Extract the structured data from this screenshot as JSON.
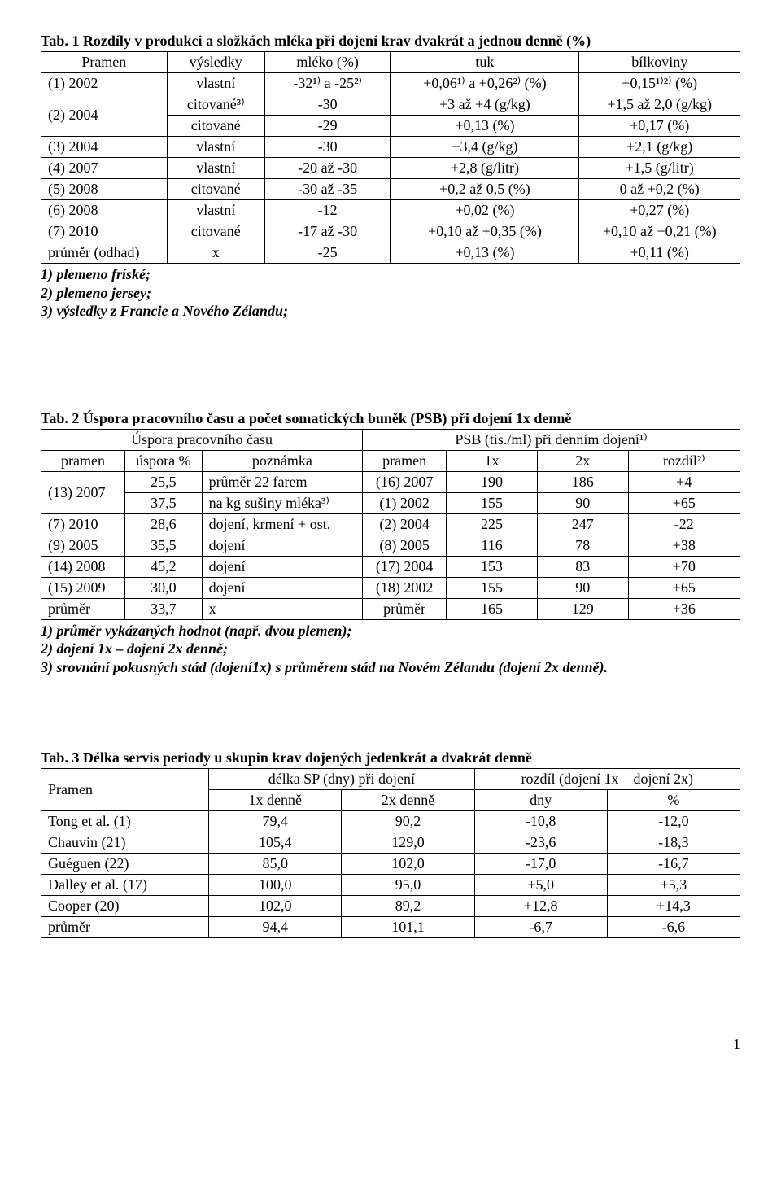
{
  "table1": {
    "title": "Tab. 1 Rozdíly v produkci a složkách mléka při dojení krav dvakrát a jednou denně (%)",
    "headers": [
      "Pramen",
      "výsledky",
      "mléko (%)",
      "tuk",
      "bílkoviny"
    ],
    "rows": [
      [
        "(1) 2002",
        "vlastní",
        "-32¹⁾ a -25²⁾",
        "+0,06¹⁾ a +0,26²⁾ (%)",
        "+0,15¹⁾²⁾ (%)"
      ],
      [
        "(2) 2004",
        "citované³⁾",
        "-30",
        "+3 až +4 (g/kg)",
        "+1,5 až 2,0 (g/kg)"
      ],
      [
        "",
        "citované",
        "-29",
        "+0,13 (%)",
        "+0,17 (%)"
      ],
      [
        "(3) 2004",
        "vlastní",
        "-30",
        "+3,4 (g/kg)",
        "+2,1 (g/kg)"
      ],
      [
        "(4) 2007",
        "vlastní",
        "-20 až -30",
        "+2,8 (g/litr)",
        "+1,5 (g/litr)"
      ],
      [
        "(5) 2008",
        "citované",
        "-30 až -35",
        "+0,2 až 0,5 (%)",
        "0 až +0,2 (%)"
      ],
      [
        "(6) 2008",
        "vlastní",
        "-12",
        "+0,02 (%)",
        "+0,27 (%)"
      ],
      [
        "(7) 2010",
        "citované",
        "-17 až -30",
        "+0,10 až +0,35 (%)",
        "+0,10 až +0,21 (%)"
      ],
      [
        "průměr (odhad)",
        "x",
        "-25",
        "+0,13 (%)",
        "+0,11 (%)"
      ]
    ],
    "col_widths": [
      "18%",
      "14%",
      "18%",
      "27%",
      "23%"
    ],
    "footnotes": [
      "1) plemeno fríské;",
      "2) plemeno jersey;",
      "3) výsledky z Francie a Nového Zélandu;"
    ]
  },
  "table2": {
    "title": "Tab. 2 Úspora pracovního času a počet somatických buněk (PSB) při dojení 1x denně",
    "header_row1_left": "Úspora pracovního času",
    "header_row1_right": "PSB (tis./ml) při denním dojení¹⁾",
    "header_row2": [
      "pramen",
      "úspora %",
      "poznámka",
      "pramen",
      "1x",
      "2x",
      "rozdíl²⁾"
    ],
    "rows": [
      [
        "(13) 2007",
        "25,5",
        "průměr 22 farem",
        "(16) 2007",
        "190",
        "186",
        "+4"
      ],
      [
        "",
        "37,5",
        "na kg sušiny mléka³⁾",
        "(1) 2002",
        "155",
        "90",
        "+65"
      ],
      [
        "(7) 2010",
        "28,6",
        "dojení, krmení + ost.",
        "(2) 2004",
        "225",
        "247",
        "-22"
      ],
      [
        "(9) 2005",
        "35,5",
        "dojení",
        "(8) 2005",
        "116",
        "78",
        "+38"
      ],
      [
        "(14) 2008",
        "45,2",
        "dojení",
        "(17) 2004",
        "153",
        "83",
        "+70"
      ],
      [
        "(15) 2009",
        "30,0",
        "dojení",
        "(18) 2002",
        "155",
        "90",
        "+65"
      ],
      [
        "průměr",
        "33,7",
        "x",
        "průměr",
        "165",
        "129",
        "+36"
      ]
    ],
    "col_widths": [
      "12%",
      "11%",
      "23%",
      "12%",
      "13%",
      "13%",
      "16%"
    ],
    "footnotes": [
      "1) průměr vykázaných hodnot (např. dvou plemen);",
      "2) dojení 1x – dojení 2x denně;",
      "3) srovnání pokusných stád (dojení1x) s průměrem stád na Novém Zélandu (dojení 2x denně)."
    ]
  },
  "table3": {
    "title": "Tab. 3 Délka servis periody u skupin krav dojených jedenkrát a dvakrát denně",
    "header_col1": "Pramen",
    "header_group1": "délka SP (dny) při dojení",
    "header_group2": "rozdíl (dojení 1x – dojení 2x)",
    "header_row2": [
      "1x denně",
      "2x denně",
      "dny",
      "%"
    ],
    "rows": [
      [
        "Tong et al. (1)",
        "79,4",
        "90,2",
        "-10,8",
        "-12,0"
      ],
      [
        "Chauvin (21)",
        "105,4",
        "129,0",
        "-23,6",
        "-18,3"
      ],
      [
        "Guéguen (22)",
        "85,0",
        "102,0",
        "-17,0",
        "-16,7"
      ],
      [
        "Dalley et al. (17)",
        "100,0",
        "95,0",
        "+5,0",
        "+5,3"
      ],
      [
        "Cooper (20)",
        "102,0",
        "89,2",
        "+12,8",
        "+14,3"
      ],
      [
        "průměr",
        "94,4",
        "101,1",
        "-6,7",
        "-6,6"
      ]
    ],
    "col_widths": [
      "24%",
      "19%",
      "19%",
      "19%",
      "19%"
    ]
  },
  "page_number": "1"
}
